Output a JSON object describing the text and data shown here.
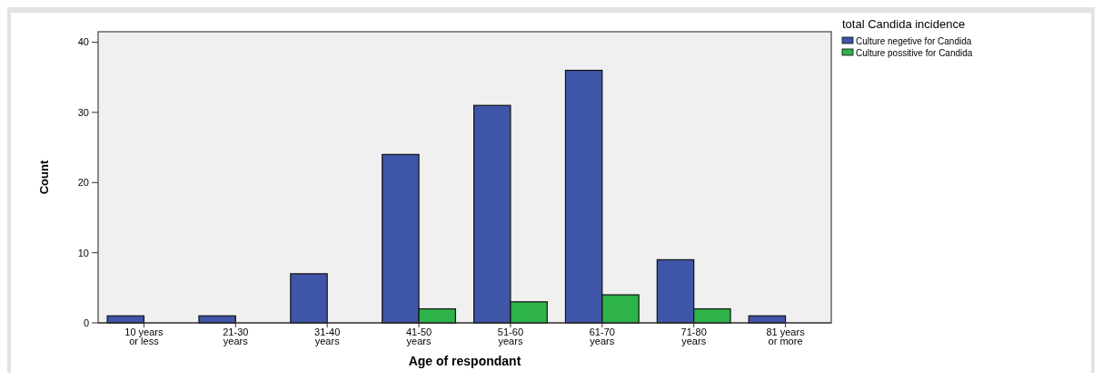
{
  "chart_data": {
    "type": "bar",
    "xlabel": "Age of respondant",
    "ylabel": "Count",
    "legend_title": "total Candida incidence",
    "categories": [
      "10 years or less",
      "21-30 years",
      "31-40 years",
      "41-50 years",
      "51-60 years",
      "61-70 years",
      "71-80 years",
      "81 years or more"
    ],
    "series": [
      {
        "name": "Culture negetive for Candida",
        "color": "#3f55a8",
        "values": [
          1,
          1,
          7,
          24,
          31,
          36,
          9,
          1
        ]
      },
      {
        "name": "Culture possitive for Candida",
        "color": "#2db34a",
        "values": [
          0,
          0,
          0,
          2,
          3,
          4,
          2,
          0
        ]
      }
    ],
    "ylim": [
      0,
      41.5
    ],
    "yticks": [
      0,
      10,
      20,
      30,
      40
    ],
    "grid": false,
    "legend": "top right"
  }
}
